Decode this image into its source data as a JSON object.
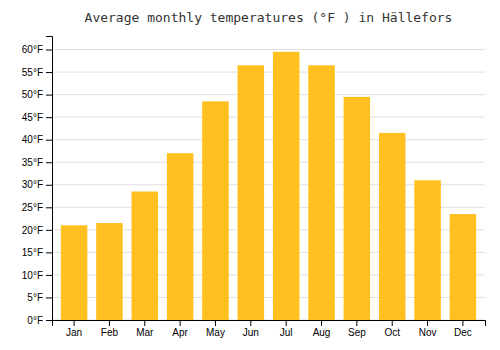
{
  "chart_data": {
    "type": "bar",
    "title": "Average monthly temperatures (°F ) in Hällefors",
    "categories": [
      "Jan",
      "Feb",
      "Mar",
      "Apr",
      "May",
      "Jun",
      "Jul",
      "Aug",
      "Sep",
      "Oct",
      "Nov",
      "Dec"
    ],
    "values": [
      21,
      21.5,
      28.5,
      37,
      48.5,
      56.5,
      59.5,
      56.5,
      49.5,
      41.5,
      31,
      23.5
    ],
    "color": "#FFC020",
    "ylim": [
      0,
      63
    ],
    "yticks": [
      {
        "value": 0,
        "label": "0°F"
      },
      {
        "value": 5,
        "label": "5°F"
      },
      {
        "value": 10,
        "label": "10°F"
      },
      {
        "value": 15,
        "label": "15°F"
      },
      {
        "value": 20,
        "label": "20°F"
      },
      {
        "value": 25,
        "label": "25°F"
      },
      {
        "value": 30,
        "label": "30°F"
      },
      {
        "value": 35,
        "label": "35°F"
      },
      {
        "value": 40,
        "label": "40°F"
      },
      {
        "value": 45,
        "label": "45°F"
      },
      {
        "value": 50,
        "label": "50°F"
      },
      {
        "value": 55,
        "label": "55°F"
      },
      {
        "value": 60,
        "label": "60°F"
      }
    ],
    "grid": true
  }
}
